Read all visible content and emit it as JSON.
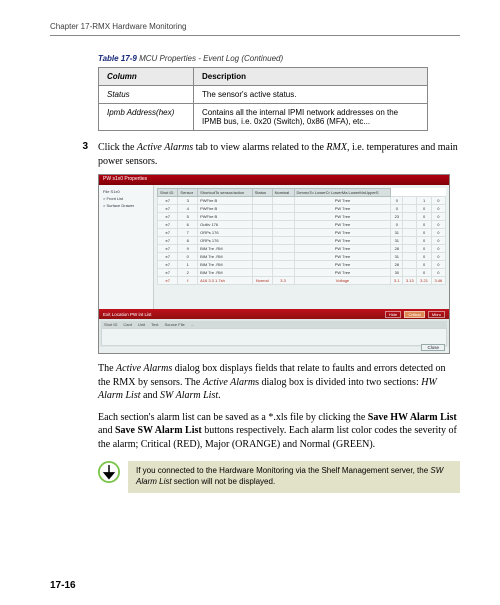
{
  "chapter": "Chapter 17-RMX Hardware Monitoring",
  "table_caption": {
    "label": "Table 17-9",
    "title": "MCU Properties - Event Log (Continued)"
  },
  "table": {
    "headers": [
      "Column",
      "Description"
    ],
    "rows": [
      [
        "Status",
        "The sensor's active status."
      ],
      [
        "Ipmb Address(hex)",
        "Contains all the internal IPMI network addresses on the IPMB bus, i.e. 0x20 (Switch), 0x86 (MFA), etc..."
      ]
    ]
  },
  "step": {
    "num": "3",
    "text_parts": [
      "Click the ",
      "Active Alarms",
      " tab to view alarms related to the ",
      "RMX",
      ", i.e. temperatures and main power sensors."
    ]
  },
  "screenshot": {
    "title": "PW s1x0 Properties",
    "sidebar": [
      "File S1x0",
      "> Front List",
      "> Surface Drawer"
    ],
    "columns": [
      "Shot ID",
      "Sensor",
      "ShortcutTo sensor/action",
      "Status",
      "Nominal",
      "DenmoTo LowerCr LowerMa LowerMnUpperS"
    ],
    "rows": [
      [
        "e7",
        "3",
        "PWFire B",
        "",
        "",
        "PW Tree",
        "0",
        "",
        "1",
        "0"
      ],
      [
        "e7",
        "4",
        "PWFire B",
        "",
        "",
        "PW Tree",
        "0",
        "",
        "0",
        "0"
      ],
      [
        "e7",
        "5",
        "PWFire B",
        "",
        "",
        "PW Tree",
        "23",
        "",
        "0",
        "0"
      ],
      [
        "e7",
        "6",
        "Outliv 176",
        "",
        "",
        "PW Tree",
        "0",
        "",
        "0",
        "0"
      ],
      [
        "e7",
        "7",
        "ORPs 176",
        "",
        "",
        "PW Tree",
        "31",
        "",
        "0",
        "0"
      ],
      [
        "e7",
        "8",
        "ORPs 176",
        "",
        "",
        "PW Tree",
        "31",
        "",
        "0",
        "0"
      ],
      [
        "e7",
        "9",
        "BIM Tre .RM",
        "",
        "",
        "PW Tree",
        "28",
        "",
        "0",
        "0"
      ],
      [
        "e7",
        "0",
        "BIM Tre .RM",
        "",
        "",
        "PW Tree",
        "31",
        "",
        "0",
        "0"
      ],
      [
        "e7",
        "1",
        "BIM Tre .RM",
        "",
        "",
        "PW Tree",
        "28",
        "",
        "0",
        "0"
      ],
      [
        "e7",
        "2",
        "BIM Tre .RM",
        "",
        "",
        "PW Tree",
        "30",
        "",
        "0",
        "0"
      ],
      [
        "e7",
        "f",
        "A16 3.3 1.7sh",
        "Normal",
        "3.3",
        "Voltage",
        "3.1",
        "3.13",
        "3.21",
        "3.46"
      ]
    ],
    "scroll_totals": [
      "4/20/100 100/20 e St"
    ],
    "midbar_label": "Exit Location PW int List",
    "chips": [
      "Hide",
      "Critical",
      "Mbro"
    ],
    "lower_head": [
      "Shot ID",
      "Card",
      "Unit",
      "Text",
      "Source File",
      "..."
    ],
    "close": "Close"
  },
  "para1_parts": [
    "The ",
    "Active Alarms",
    " dialog box displays fields that relate to faults and errors detected on the RMX by sensors. The ",
    "Active Alarm",
    "s dialog box is divided into two sections: ",
    "HW Alarm List",
    " and ",
    "SW Alarm List",
    "."
  ],
  "para2_parts": [
    "Each section's alarm list can be saved as a *.xls file by clicking the ",
    "Save HW Alarm List",
    " and ",
    "Save SW Alarm List",
    " buttons respectively. Each alarm list color codes the severity of the alarm; Critical (RED), Major (ORANGE) and Normal (GREEN)."
  ],
  "note_parts": [
    "If you connected to the Hardware Monitoring via the Shelf Management server, the ",
    "SW Alarm List",
    " section will not be displayed."
  ],
  "page_num": "17-16"
}
